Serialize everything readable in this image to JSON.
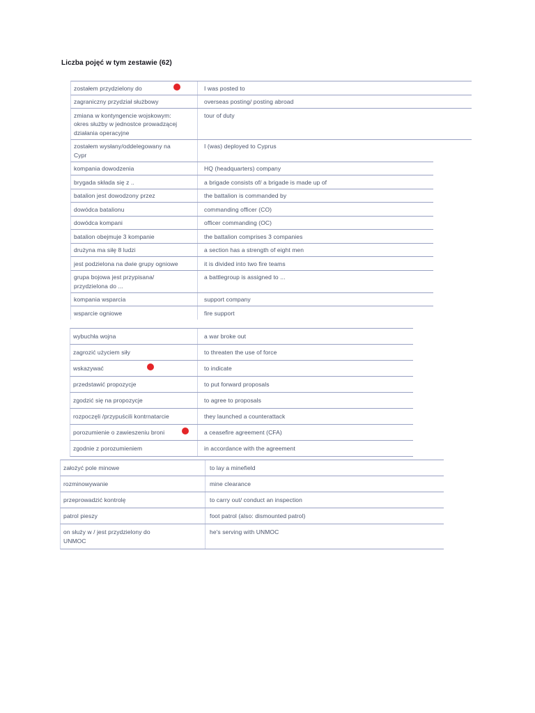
{
  "title": "Liczba pojęć w tym zestawie (62)",
  "colors": {
    "accent_dot": "#e42528",
    "row_border": "#99a1c3",
    "column_divider": "#cdd2e5",
    "body_text": "#49536b",
    "title_text": "#15151d"
  },
  "blocks": [
    {
      "name": "set-1",
      "rows": [
        {
          "pl": "zostałem przydzielony do",
          "en": "I was posted to",
          "marker": true
        },
        {
          "pl": "zagraniczny przydział służbowy",
          "en": "overseas posting/ posting abroad"
        },
        {
          "pl": "zmiana w kontyngencie wojskowym:\nokres służby w jednostce prowadzącej\ndziałania operacyjne",
          "en": "tour of duty"
        },
        {
          "pl": "zostałem wysłany/oddelegowany na\nCypr",
          "en": "I (was) deployed to Cyprus"
        },
        {
          "pl": "kompania dowodzenia",
          "en": "HQ (headquarters) company"
        },
        {
          "pl": "brygada składa się z ..",
          "en": "a brigade consists of/ a brigade is made up of"
        },
        {
          "pl": "batalion jest dowodzony przez",
          "en": "the battalion is commanded by"
        },
        {
          "pl": "dowódca batalionu",
          "en": "commanding officer (CO)"
        },
        {
          "pl": "dowódca kompani",
          "en": "officer commanding (OC)"
        },
        {
          "pl": "batalion obejmuje 3 kompanie",
          "en": "the battalion comprises 3 companies"
        },
        {
          "pl": "drużyna ma siłę 8 ludzi",
          "en": "a section has a strength of eight men"
        },
        {
          "pl": "jest podzielona na dwie grupy ogniowe",
          "en": "it is divided into two fire teams"
        },
        {
          "pl": "grupa bojowa jest przypisana/\nprzydzielona do ...",
          "en": "a battlegroup is assigned to ..."
        },
        {
          "pl": "kompania wsparcia",
          "en": "support company"
        },
        {
          "pl": "wsparcie ogniowe",
          "en": "fire support"
        }
      ]
    },
    {
      "name": "set-2",
      "rows": [
        {
          "pl": "wybuchła wojna",
          "en": "a war broke out"
        },
        {
          "pl": "zagrozić użyciem siły",
          "en": "to threaten the use of force"
        },
        {
          "pl": "wskazywać",
          "en": "to indicate",
          "marker": true
        },
        {
          "pl": "przedstawić propozycje",
          "en": "to put forward proposals"
        },
        {
          "pl": "zgodzić się na propozycje",
          "en": "to agree to proposals"
        },
        {
          "pl": "rozpoczęli /przypuścili kontrnatarcie",
          "en": "they launched a counterattack"
        },
        {
          "pl": "porozumienie o zawieszeniu broni",
          "en": "a ceasefire agreement (CFA)",
          "marker": true
        },
        {
          "pl": "zgodnie z porozumieniem",
          "en": "in accordance with the agreement"
        }
      ]
    },
    {
      "name": "set-3",
      "rows": [
        {
          "pl": "założyć pole minowe",
          "en": "to lay a minefield"
        },
        {
          "pl": "rozminowywanie",
          "en": "mine clearance"
        },
        {
          "pl": "przeprowadzić kontrolę",
          "en": "to carry out/ conduct an inspection"
        },
        {
          "pl": "patrol pieszy",
          "en": "foot patrol (also: dismounted patrol)"
        },
        {
          "pl": "on służy w / jest przydzielony do\nUNMOC",
          "en": "he's serving with UNMOC"
        }
      ]
    }
  ]
}
